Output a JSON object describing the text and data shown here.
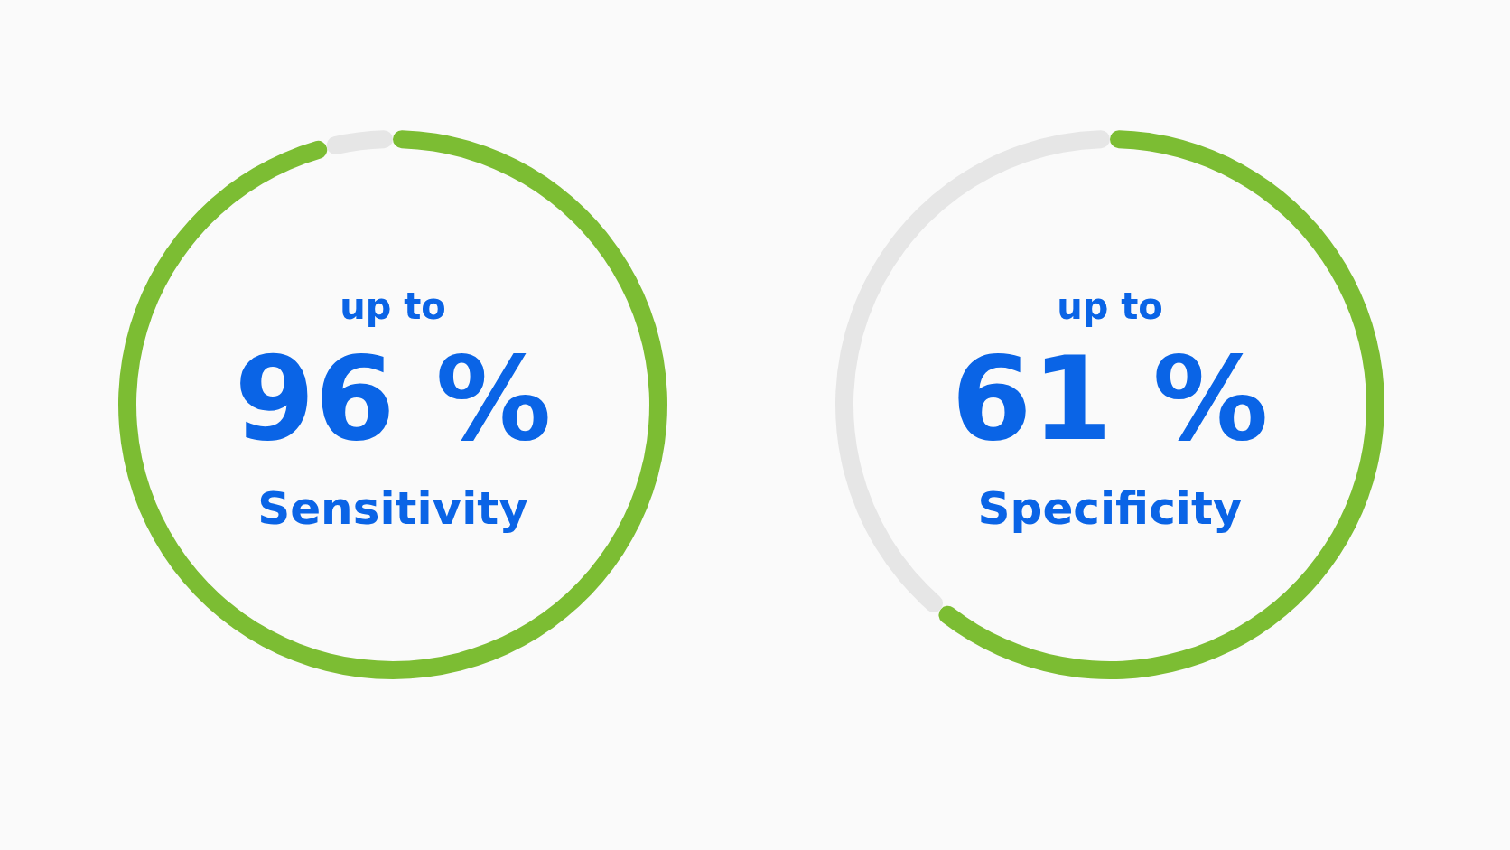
{
  "chart_data": [
    {
      "type": "donut",
      "categories": [
        null,
        null
      ],
      "values": [
        96,
        4
      ],
      "colors": [
        "#7cbd33",
        "#e6e6e6"
      ],
      "annotations": [
        "up to",
        "96 %",
        "Sensitivity"
      ]
    },
    {
      "type": "donut",
      "categories": [
        null,
        null
      ],
      "values": [
        61,
        39
      ],
      "colors": [
        "#7cbd33",
        "#e6e6e6"
      ],
      "annotations": [
        "up to",
        "61 %",
        "Specificity"
      ]
    }
  ]
}
